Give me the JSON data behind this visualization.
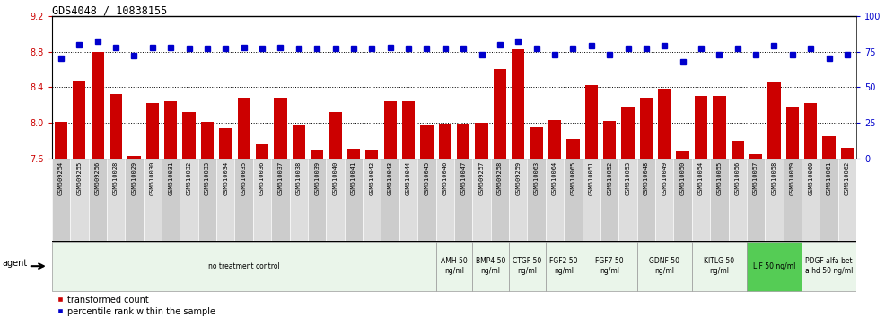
{
  "title": "GDS4048 / 10838155",
  "ylim_left": [
    7.6,
    9.2
  ],
  "ylim_right": [
    0,
    100
  ],
  "yticks_left": [
    7.6,
    8.0,
    8.4,
    8.8,
    9.2
  ],
  "yticks_right": [
    0,
    25,
    50,
    75,
    100
  ],
  "ylabel_left_color": "#cc0000",
  "ylabel_right_color": "#0000cc",
  "samples": [
    "GSM509254",
    "GSM509255",
    "GSM509256",
    "GSM510028",
    "GSM510029",
    "GSM510030",
    "GSM510031",
    "GSM510032",
    "GSM510033",
    "GSM510034",
    "GSM510035",
    "GSM510036",
    "GSM510037",
    "GSM510038",
    "GSM510039",
    "GSM510040",
    "GSM510041",
    "GSM510042",
    "GSM510043",
    "GSM510044",
    "GSM510045",
    "GSM510046",
    "GSM510047",
    "GSM509257",
    "GSM509258",
    "GSM509259",
    "GSM510063",
    "GSM510064",
    "GSM510065",
    "GSM510051",
    "GSM510052",
    "GSM510053",
    "GSM510048",
    "GSM510049",
    "GSM510050",
    "GSM510054",
    "GSM510055",
    "GSM510056",
    "GSM510057",
    "GSM510058",
    "GSM510059",
    "GSM510060",
    "GSM510061",
    "GSM510062"
  ],
  "bar_values": [
    8.01,
    8.47,
    8.8,
    8.32,
    7.63,
    8.22,
    8.24,
    8.12,
    8.01,
    7.94,
    8.28,
    7.76,
    8.28,
    7.97,
    7.7,
    8.12,
    7.71,
    7.7,
    8.24,
    8.24,
    7.97,
    7.99,
    7.99,
    8.0,
    8.6,
    8.83,
    7.95,
    8.03,
    7.82,
    8.42,
    8.02,
    8.18,
    8.28,
    8.38,
    7.68,
    8.3,
    8.3,
    7.8,
    7.65,
    8.45,
    8.18,
    8.22,
    7.85,
    7.72
  ],
  "percentile_values": [
    70,
    80,
    82,
    78,
    72,
    78,
    78,
    77,
    77,
    77,
    78,
    77,
    78,
    77,
    77,
    77,
    77,
    77,
    78,
    77,
    77,
    77,
    77,
    73,
    80,
    82,
    77,
    73,
    77,
    79,
    73,
    77,
    77,
    79,
    68,
    77,
    73,
    77,
    73,
    79,
    73,
    77,
    70,
    73
  ],
  "bar_color": "#cc0000",
  "percentile_color": "#0000cc",
  "agent_groups": [
    {
      "label": "no treatment control",
      "start": 0,
      "end": 21,
      "bg": "#eaf5ea"
    },
    {
      "label": "AMH 50\nng/ml",
      "start": 21,
      "end": 23,
      "bg": "#eaf5ea"
    },
    {
      "label": "BMP4 50\nng/ml",
      "start": 23,
      "end": 25,
      "bg": "#eaf5ea"
    },
    {
      "label": "CTGF 50\nng/ml",
      "start": 25,
      "end": 27,
      "bg": "#eaf5ea"
    },
    {
      "label": "FGF2 50\nng/ml",
      "start": 27,
      "end": 29,
      "bg": "#eaf5ea"
    },
    {
      "label": "FGF7 50\nng/ml",
      "start": 29,
      "end": 32,
      "bg": "#eaf5ea"
    },
    {
      "label": "GDNF 50\nng/ml",
      "start": 32,
      "end": 35,
      "bg": "#eaf5ea"
    },
    {
      "label": "KITLG 50\nng/ml",
      "start": 35,
      "end": 38,
      "bg": "#eaf5ea"
    },
    {
      "label": "LIF 50 ng/ml",
      "start": 38,
      "end": 41,
      "bg": "#55cc55"
    },
    {
      "label": "PDGF alfa bet\na hd 50 ng/ml",
      "start": 41,
      "end": 44,
      "bg": "#eaf5ea"
    }
  ]
}
